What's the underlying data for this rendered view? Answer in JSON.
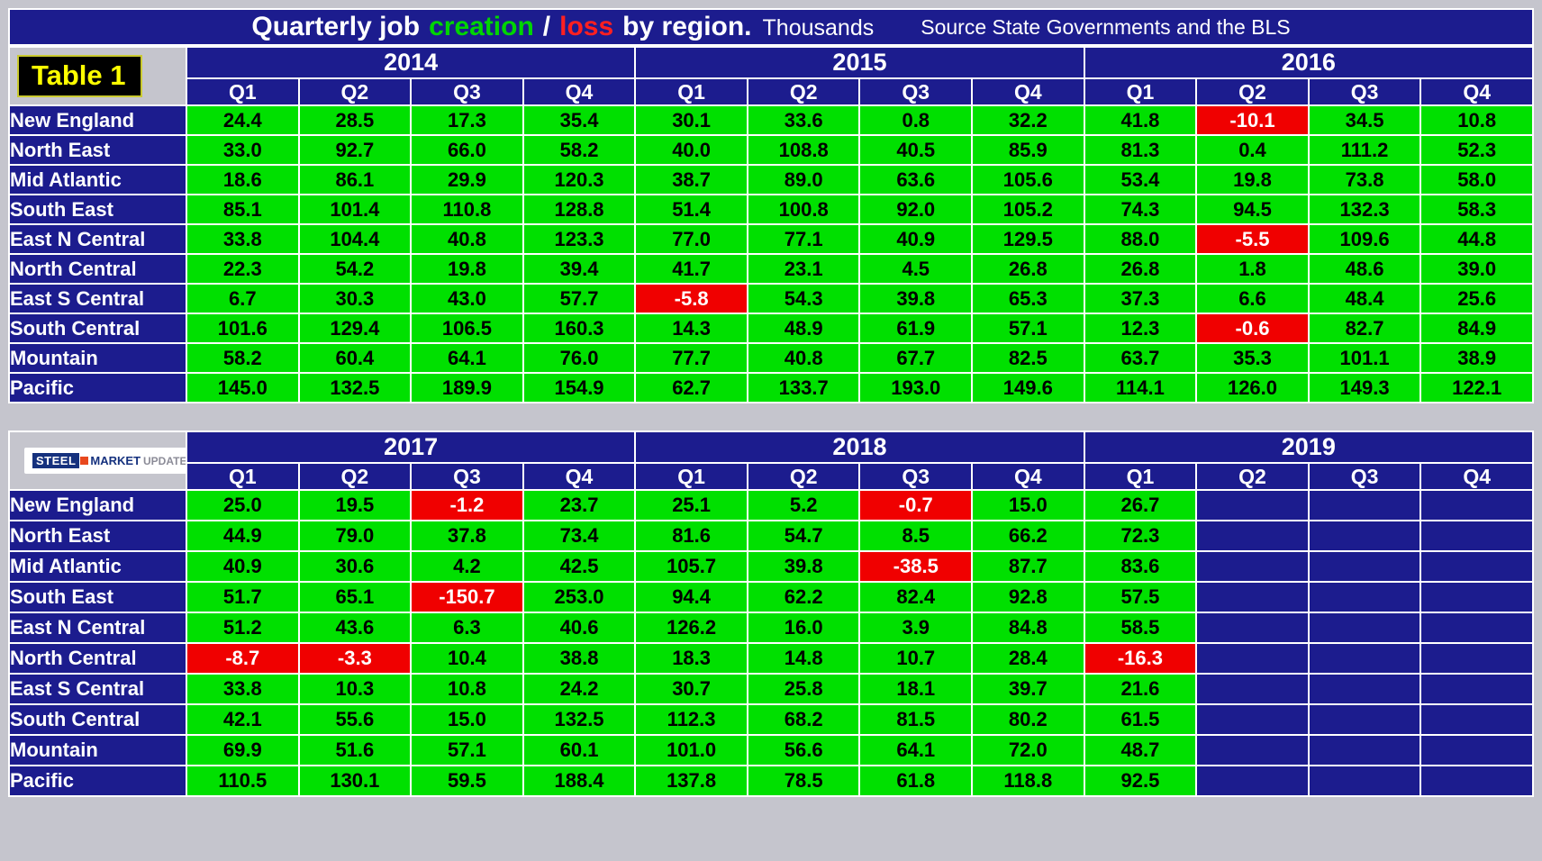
{
  "title": {
    "lead": "Quarterly job",
    "creation": "creation",
    "separator": "/",
    "loss": "loss",
    "tail": "by region.",
    "units": "Thousands",
    "source": "Source State Governments and the BLS"
  },
  "badge_label": "Table 1",
  "logo": {
    "steel": "STEEL",
    "market": "MARKET",
    "update": "UPDATE"
  },
  "chart_data": {
    "type": "table",
    "title": "Quarterly job creation / loss by region",
    "units": "Thousands",
    "source": "Source State Governments and the BLS",
    "quarters": [
      "Q1",
      "Q2",
      "Q3",
      "Q4"
    ],
    "tables": [
      {
        "name": "2014-2016",
        "years": [
          "2014",
          "2015",
          "2016"
        ],
        "regions": [
          "New England",
          "North East",
          "Mid Atlantic",
          "South East",
          "East N Central",
          "North Central",
          "East S Central",
          "South Central",
          "Mountain",
          "Pacific"
        ],
        "rows": [
          [
            "24.4",
            "28.5",
            "17.3",
            "35.4",
            "30.1",
            "33.6",
            "0.8",
            "32.2",
            "41.8",
            "-10.1",
            "34.5",
            "10.8"
          ],
          [
            "33.0",
            "92.7",
            "66.0",
            "58.2",
            "40.0",
            "108.8",
            "40.5",
            "85.9",
            "81.3",
            "0.4",
            "111.2",
            "52.3"
          ],
          [
            "18.6",
            "86.1",
            "29.9",
            "120.3",
            "38.7",
            "89.0",
            "63.6",
            "105.6",
            "53.4",
            "19.8",
            "73.8",
            "58.0"
          ],
          [
            "85.1",
            "101.4",
            "110.8",
            "128.8",
            "51.4",
            "100.8",
            "92.0",
            "105.2",
            "74.3",
            "94.5",
            "132.3",
            "58.3"
          ],
          [
            "33.8",
            "104.4",
            "40.8",
            "123.3",
            "77.0",
            "77.1",
            "40.9",
            "129.5",
            "88.0",
            "-5.5",
            "109.6",
            "44.8"
          ],
          [
            "22.3",
            "54.2",
            "19.8",
            "39.4",
            "41.7",
            "23.1",
            "4.5",
            "26.8",
            "26.8",
            "1.8",
            "48.6",
            "39.0"
          ],
          [
            "6.7",
            "30.3",
            "43.0",
            "57.7",
            "-5.8",
            "54.3",
            "39.8",
            "65.3",
            "37.3",
            "6.6",
            "48.4",
            "25.6"
          ],
          [
            "101.6",
            "129.4",
            "106.5",
            "160.3",
            "14.3",
            "48.9",
            "61.9",
            "57.1",
            "12.3",
            "-0.6",
            "82.7",
            "84.9"
          ],
          [
            "58.2",
            "60.4",
            "64.1",
            "76.0",
            "77.7",
            "40.8",
            "67.7",
            "82.5",
            "63.7",
            "35.3",
            "101.1",
            "38.9"
          ],
          [
            "145.0",
            "132.5",
            "189.9",
            "154.9",
            "62.7",
            "133.7",
            "193.0",
            "149.6",
            "114.1",
            "126.0",
            "149.3",
            "122.1"
          ]
        ]
      },
      {
        "name": "2017-2019",
        "years": [
          "2017",
          "2018",
          "2019"
        ],
        "regions": [
          "New England",
          "North East",
          "Mid Atlantic",
          "South East",
          "East N Central",
          "North Central",
          "East S Central",
          "South Central",
          "Mountain",
          "Pacific"
        ],
        "rows": [
          [
            "25.0",
            "19.5",
            "-1.2",
            "23.7",
            "25.1",
            "5.2",
            "-0.7",
            "15.0",
            "26.7",
            null,
            null,
            null
          ],
          [
            "44.9",
            "79.0",
            "37.8",
            "73.4",
            "81.6",
            "54.7",
            "8.5",
            "66.2",
            "72.3",
            null,
            null,
            null
          ],
          [
            "40.9",
            "30.6",
            "4.2",
            "42.5",
            "105.7",
            "39.8",
            "-38.5",
            "87.7",
            "83.6",
            null,
            null,
            null
          ],
          [
            "51.7",
            "65.1",
            "-150.7",
            "253.0",
            "94.4",
            "62.2",
            "82.4",
            "92.8",
            "57.5",
            null,
            null,
            null
          ],
          [
            "51.2",
            "43.6",
            "6.3",
            "40.6",
            "126.2",
            "16.0",
            "3.9",
            "84.8",
            "58.5",
            null,
            null,
            null
          ],
          [
            "-8.7",
            "-3.3",
            "10.4",
            "38.8",
            "18.3",
            "14.8",
            "10.7",
            "28.4",
            "-16.3",
            null,
            null,
            null
          ],
          [
            "33.8",
            "10.3",
            "10.8",
            "24.2",
            "30.7",
            "25.8",
            "18.1",
            "39.7",
            "21.6",
            null,
            null,
            null
          ],
          [
            "42.1",
            "55.6",
            "15.0",
            "132.5",
            "112.3",
            "68.2",
            "81.5",
            "80.2",
            "61.5",
            null,
            null,
            null
          ],
          [
            "69.9",
            "51.6",
            "57.1",
            "60.1",
            "101.0",
            "56.6",
            "64.1",
            "72.0",
            "48.7",
            null,
            null,
            null
          ],
          [
            "110.5",
            "130.1",
            "59.5",
            "188.4",
            "137.8",
            "78.5",
            "61.8",
            "118.8",
            "92.5",
            null,
            null,
            null
          ]
        ]
      }
    ]
  },
  "colors": {
    "header_bg": "#1c1c8e",
    "frame_bg": "#c5c5cd",
    "grid_line": "#ffffff",
    "positive_bg": "#00e000",
    "negative_bg": "#f00000",
    "creation_text": "#00d500",
    "loss_text": "#ff2020",
    "badge_bg": "#000000",
    "badge_text": "#ffff00"
  }
}
